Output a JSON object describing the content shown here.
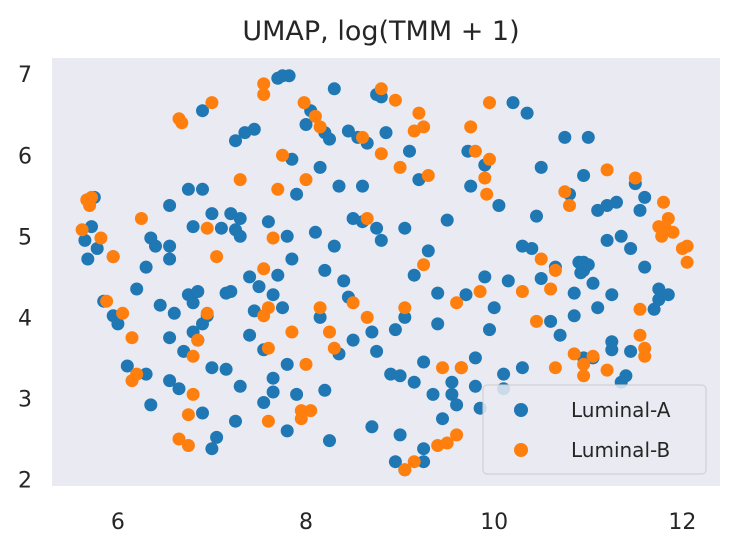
{
  "chart_data": {
    "type": "scatter",
    "title": "UMAP, log(TMM + 1)",
    "xlabel": "",
    "ylabel": "",
    "xlim": [
      5.3,
      12.4
    ],
    "ylim": [
      1.92,
      7.2
    ],
    "xticks": [
      6,
      8,
      10,
      12
    ],
    "yticks": [
      2,
      3,
      4,
      5,
      6,
      7
    ],
    "grid": false,
    "legend_position": "bottom-right",
    "background": "#eaeaf2",
    "series": [
      {
        "name": "Luminal-A",
        "color": "#1f77b4",
        "points": [
          [
            5.75,
            5.48
          ],
          [
            5.72,
            5.12
          ],
          [
            5.65,
            4.95
          ],
          [
            5.68,
            4.72
          ],
          [
            5.78,
            4.85
          ],
          [
            5.95,
            4.75
          ],
          [
            5.85,
            4.2
          ],
          [
            5.95,
            4.02
          ],
          [
            6.0,
            3.92
          ],
          [
            6.2,
            4.35
          ],
          [
            6.1,
            3.4
          ],
          [
            6.3,
            3.3
          ],
          [
            6.35,
            2.92
          ],
          [
            6.3,
            4.62
          ],
          [
            6.35,
            4.98
          ],
          [
            6.4,
            4.88
          ],
          [
            6.45,
            4.15
          ],
          [
            6.55,
            4.88
          ],
          [
            6.55,
            4.72
          ],
          [
            6.55,
            3.75
          ],
          [
            6.6,
            4.05
          ],
          [
            6.55,
            5.38
          ],
          [
            6.55,
            3.22
          ],
          [
            6.65,
            3.12
          ],
          [
            6.7,
            3.58
          ],
          [
            6.75,
            4.28
          ],
          [
            6.75,
            5.58
          ],
          [
            6.8,
            5.12
          ],
          [
            6.8,
            4.18
          ],
          [
            6.8,
            3.82
          ],
          [
            6.85,
            4.32
          ],
          [
            6.85,
            3.72
          ],
          [
            6.9,
            3.92
          ],
          [
            6.9,
            5.58
          ],
          [
            6.9,
            6.55
          ],
          [
            6.95,
            4.02
          ],
          [
            7.0,
            5.28
          ],
          [
            7.0,
            3.38
          ],
          [
            6.9,
            2.82
          ],
          [
            7.0,
            2.38
          ],
          [
            7.05,
            2.52
          ],
          [
            7.1,
            5.1
          ],
          [
            7.15,
            3.36
          ],
          [
            7.15,
            4.3
          ],
          [
            7.2,
            4.32
          ],
          [
            7.2,
            5.28
          ],
          [
            7.25,
            5.08
          ],
          [
            7.25,
            2.72
          ],
          [
            7.25,
            6.18
          ],
          [
            7.3,
            3.15
          ],
          [
            7.3,
            5.0
          ],
          [
            7.3,
            5.22
          ],
          [
            7.35,
            6.28
          ],
          [
            7.4,
            4.5
          ],
          [
            7.4,
            3.78
          ],
          [
            7.45,
            6.32
          ],
          [
            7.45,
            4.08
          ],
          [
            7.5,
            4.38
          ],
          [
            7.55,
            2.95
          ],
          [
            7.55,
            3.6
          ],
          [
            7.6,
            5.18
          ],
          [
            7.65,
            4.28
          ],
          [
            7.65,
            3.08
          ],
          [
            7.65,
            3.25
          ],
          [
            7.7,
            6.95
          ],
          [
            7.7,
            4.52
          ],
          [
            7.75,
            6.98
          ],
          [
            7.75,
            4.12
          ],
          [
            7.8,
            5.0
          ],
          [
            7.8,
            3.42
          ],
          [
            7.8,
            2.6
          ],
          [
            7.82,
            6.98
          ],
          [
            7.85,
            4.72
          ],
          [
            7.85,
            5.95
          ],
          [
            7.9,
            5.52
          ],
          [
            7.9,
            3.05
          ],
          [
            8.0,
            6.38
          ],
          [
            8.05,
            6.55
          ],
          [
            8.1,
            5.05
          ],
          [
            8.15,
            4.0
          ],
          [
            8.15,
            5.85
          ],
          [
            8.2,
            6.28
          ],
          [
            8.2,
            3.1
          ],
          [
            8.2,
            4.58
          ],
          [
            8.25,
            2.48
          ],
          [
            8.25,
            6.2
          ],
          [
            8.3,
            6.82
          ],
          [
            8.3,
            4.88
          ],
          [
            8.35,
            5.62
          ],
          [
            8.35,
            3.55
          ],
          [
            8.4,
            4.45
          ],
          [
            8.45,
            4.25
          ],
          [
            8.45,
            6.3
          ],
          [
            8.5,
            5.22
          ],
          [
            8.5,
            3.72
          ],
          [
            8.55,
            6.22
          ],
          [
            8.6,
            5.62
          ],
          [
            8.6,
            5.18
          ],
          [
            8.65,
            6.15
          ],
          [
            8.7,
            3.82
          ],
          [
            8.7,
            2.65
          ],
          [
            8.75,
            6.75
          ],
          [
            8.75,
            3.58
          ],
          [
            8.75,
            5.1
          ],
          [
            8.8,
            4.95
          ],
          [
            8.8,
            6.72
          ],
          [
            8.85,
            6.28
          ],
          [
            8.9,
            3.3
          ],
          [
            8.95,
            3.85
          ],
          [
            8.95,
            2.22
          ],
          [
            9.0,
            2.55
          ],
          [
            9.0,
            3.28
          ],
          [
            9.05,
            2.12
          ],
          [
            9.05,
            4.0
          ],
          [
            9.05,
            5.1
          ],
          [
            9.1,
            6.05
          ],
          [
            9.15,
            3.2
          ],
          [
            9.15,
            4.52
          ],
          [
            9.2,
            5.7
          ],
          [
            9.25,
            3.45
          ],
          [
            9.25,
            2.38
          ],
          [
            9.25,
            2.22
          ],
          [
            9.3,
            4.82
          ],
          [
            9.35,
            3.05
          ],
          [
            9.4,
            4.3
          ],
          [
            9.4,
            3.92
          ],
          [
            9.45,
            2.75
          ],
          [
            9.5,
            5.2
          ],
          [
            9.55,
            3.2
          ],
          [
            9.55,
            3.05
          ],
          [
            9.6,
            2.92
          ],
          [
            9.65,
            3.38
          ],
          [
            9.7,
            4.28
          ],
          [
            9.72,
            6.05
          ],
          [
            9.75,
            5.62
          ],
          [
            9.8,
            3.15
          ],
          [
            9.8,
            3.5
          ],
          [
            9.85,
            2.88
          ],
          [
            9.9,
            5.88
          ],
          [
            9.9,
            4.5
          ],
          [
            9.95,
            3.85
          ],
          [
            10.0,
            4.12
          ],
          [
            10.05,
            5.38
          ],
          [
            10.1,
            3.3
          ],
          [
            10.1,
            3.12
          ],
          [
            10.15,
            4.45
          ],
          [
            10.2,
            6.65
          ],
          [
            10.3,
            3.38
          ],
          [
            10.3,
            4.88
          ],
          [
            10.35,
            6.52
          ],
          [
            10.4,
            4.85
          ],
          [
            10.45,
            5.25
          ],
          [
            10.5,
            5.85
          ],
          [
            10.5,
            4.48
          ],
          [
            10.6,
            3.95
          ],
          [
            10.65,
            4.62
          ],
          [
            10.7,
            3.78
          ],
          [
            10.75,
            6.22
          ],
          [
            10.8,
            5.52
          ],
          [
            10.85,
            4.3
          ],
          [
            10.85,
            4.02
          ],
          [
            10.9,
            4.68
          ],
          [
            10.92,
            4.55
          ],
          [
            10.95,
            4.68
          ],
          [
            10.95,
            4.58
          ],
          [
            10.95,
            3.5
          ],
          [
            10.95,
            5.75
          ],
          [
            11.0,
            6.22
          ],
          [
            11.0,
            4.65
          ],
          [
            11.05,
            4.42
          ],
          [
            11.05,
            3.5
          ],
          [
            11.1,
            5.32
          ],
          [
            11.1,
            4.12
          ],
          [
            11.2,
            5.38
          ],
          [
            11.2,
            4.95
          ],
          [
            11.25,
            4.28
          ],
          [
            11.25,
            3.7
          ],
          [
            11.25,
            3.6
          ],
          [
            11.3,
            5.42
          ],
          [
            11.35,
            5.0
          ],
          [
            11.35,
            3.2
          ],
          [
            11.4,
            3.28
          ],
          [
            11.45,
            4.85
          ],
          [
            11.45,
            3.58
          ],
          [
            11.5,
            5.65
          ],
          [
            11.55,
            5.32
          ],
          [
            11.6,
            4.62
          ],
          [
            11.6,
            5.48
          ],
          [
            11.7,
            4.1
          ],
          [
            11.75,
            4.22
          ],
          [
            11.75,
            4.35
          ],
          [
            11.85,
            4.28
          ]
        ]
      },
      {
        "name": "Luminal-B",
        "color": "#ff7f0e",
        "points": [
          [
            5.62,
            5.08
          ],
          [
            5.67,
            5.45
          ],
          [
            5.7,
            5.38
          ],
          [
            5.72,
            5.48
          ],
          [
            5.82,
            4.98
          ],
          [
            5.88,
            4.2
          ],
          [
            5.95,
            4.75
          ],
          [
            6.05,
            4.05
          ],
          [
            6.15,
            3.22
          ],
          [
            6.15,
            3.75
          ],
          [
            6.2,
            3.3
          ],
          [
            6.25,
            5.22
          ],
          [
            6.65,
            6.45
          ],
          [
            6.68,
            6.4
          ],
          [
            6.65,
            2.5
          ],
          [
            6.75,
            2.8
          ],
          [
            6.75,
            2.42
          ],
          [
            6.8,
            3.05
          ],
          [
            6.8,
            3.52
          ],
          [
            6.85,
            3.72
          ],
          [
            6.95,
            4.05
          ],
          [
            6.95,
            5.1
          ],
          [
            7.0,
            6.65
          ],
          [
            7.05,
            4.75
          ],
          [
            7.3,
            5.7
          ],
          [
            7.55,
            6.75
          ],
          [
            7.55,
            6.88
          ],
          [
            7.55,
            4.02
          ],
          [
            7.55,
            4.6
          ],
          [
            7.6,
            4.12
          ],
          [
            7.6,
            3.62
          ],
          [
            7.6,
            2.72
          ],
          [
            7.65,
            4.98
          ],
          [
            7.7,
            5.58
          ],
          [
            7.75,
            6.0
          ],
          [
            7.85,
            3.82
          ],
          [
            7.95,
            2.75
          ],
          [
            7.95,
            2.85
          ],
          [
            7.98,
            6.65
          ],
          [
            8.0,
            5.7
          ],
          [
            8.0,
            3.42
          ],
          [
            8.05,
            2.85
          ],
          [
            8.1,
            6.48
          ],
          [
            8.15,
            4.12
          ],
          [
            8.15,
            6.35
          ],
          [
            8.25,
            3.82
          ],
          [
            8.3,
            3.62
          ],
          [
            8.5,
            4.18
          ],
          [
            8.6,
            6.22
          ],
          [
            8.65,
            5.22
          ],
          [
            8.65,
            4.0
          ],
          [
            8.8,
            6.82
          ],
          [
            8.8,
            6.02
          ],
          [
            8.95,
            6.68
          ],
          [
            9.0,
            5.85
          ],
          [
            9.05,
            2.12
          ],
          [
            9.05,
            4.12
          ],
          [
            9.15,
            2.22
          ],
          [
            9.15,
            6.3
          ],
          [
            9.2,
            6.52
          ],
          [
            9.25,
            6.35
          ],
          [
            9.25,
            4.65
          ],
          [
            9.3,
            5.75
          ],
          [
            9.4,
            2.42
          ],
          [
            9.45,
            3.38
          ],
          [
            9.5,
            2.45
          ],
          [
            9.6,
            2.55
          ],
          [
            9.6,
            4.18
          ],
          [
            9.65,
            3.38
          ],
          [
            9.75,
            6.35
          ],
          [
            9.8,
            6.05
          ],
          [
            9.85,
            4.32
          ],
          [
            9.9,
            5.72
          ],
          [
            9.92,
            5.52
          ],
          [
            9.95,
            6.65
          ],
          [
            9.95,
            5.95
          ],
          [
            10.3,
            4.32
          ],
          [
            10.45,
            3.95
          ],
          [
            10.5,
            4.72
          ],
          [
            10.6,
            4.35
          ],
          [
            10.65,
            3.38
          ],
          [
            10.65,
            4.58
          ],
          [
            10.75,
            5.55
          ],
          [
            10.8,
            5.38
          ],
          [
            10.85,
            3.55
          ],
          [
            10.95,
            3.28
          ],
          [
            10.95,
            3.42
          ],
          [
            11.05,
            3.52
          ],
          [
            11.2,
            5.82
          ],
          [
            11.2,
            3.35
          ],
          [
            11.5,
            5.72
          ],
          [
            11.55,
            4.1
          ],
          [
            11.55,
            3.78
          ],
          [
            11.6,
            3.52
          ],
          [
            11.6,
            3.62
          ],
          [
            11.75,
            5.12
          ],
          [
            11.78,
            5.0
          ],
          [
            11.8,
            5.42
          ],
          [
            11.82,
            5.1
          ],
          [
            11.85,
            5.22
          ],
          [
            11.9,
            5.05
          ],
          [
            12.0,
            4.85
          ],
          [
            12.05,
            4.88
          ],
          [
            12.05,
            4.68
          ]
        ]
      }
    ]
  }
}
